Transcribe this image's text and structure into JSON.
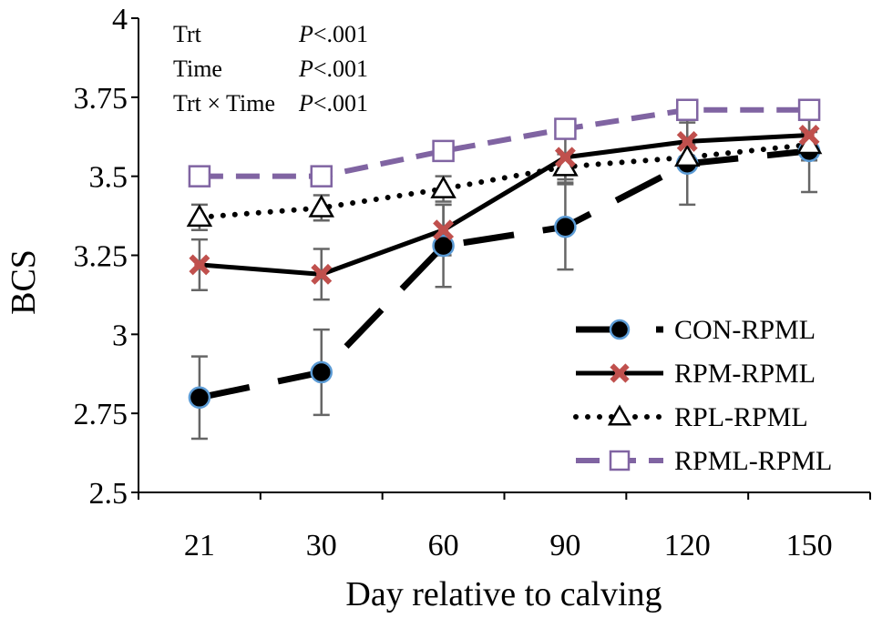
{
  "chart_data": {
    "type": "line",
    "title": "",
    "xlabel": "Day relative to calving",
    "ylabel": "BCS",
    "categories": [
      "21",
      "30",
      "60",
      "90",
      "120",
      "150"
    ],
    "ylim": [
      2.5,
      4
    ],
    "yticks": [
      2.5,
      2.75,
      3,
      3.25,
      3.5,
      3.75,
      4
    ],
    "ytick_labels": [
      "2.5",
      "2.75",
      "3",
      "3.25",
      "3.5",
      "3.75",
      "4"
    ],
    "grid": false,
    "legend_position": "bottom-right",
    "annotations": [
      {
        "label": "Trt",
        "value": "<.001"
      },
      {
        "label": "Time",
        "value": "<.001"
      },
      {
        "label": "Trt × Time",
        "value": "<.001"
      }
    ],
    "p_symbol": "P",
    "series": [
      {
        "name": "CON-RPML",
        "values": [
          2.8,
          2.88,
          3.28,
          3.34,
          3.54,
          3.58
        ],
        "error": [
          0.13,
          0.135,
          0.13,
          0.135,
          0.13,
          0.13
        ],
        "line_style": "long-dash",
        "marker": "circle",
        "color": "#000000",
        "marker_fill": "#000000",
        "marker_stroke": "#5b9bd5"
      },
      {
        "name": "RPM-RPML",
        "values": [
          3.22,
          3.19,
          3.33,
          3.56,
          3.61,
          3.63
        ],
        "error": [
          0.08,
          0.08,
          0.08,
          0.08,
          0.08,
          0.08
        ],
        "line_style": "solid",
        "marker": "x",
        "color": "#000000",
        "marker_fill": "#c0504d",
        "marker_stroke": "#c0504d"
      },
      {
        "name": "RPL-RPML",
        "values": [
          3.37,
          3.4,
          3.46,
          3.53,
          3.56,
          3.6
        ],
        "error": [
          0.04,
          0.04,
          0.04,
          0.04,
          0.04,
          0.04
        ],
        "line_style": "dotted",
        "marker": "triangle",
        "color": "#000000",
        "marker_fill": "#ffffff",
        "marker_stroke": "#000000"
      },
      {
        "name": "RPML-RPML",
        "values": [
          3.5,
          3.5,
          3.58,
          3.65,
          3.71,
          3.71
        ],
        "error": [
          0,
          0,
          0,
          0,
          0,
          0
        ],
        "line_style": "short-dash",
        "marker": "square",
        "color": "#8064a2",
        "marker_fill": "#ffffff",
        "marker_stroke": "#8064a2"
      }
    ]
  }
}
